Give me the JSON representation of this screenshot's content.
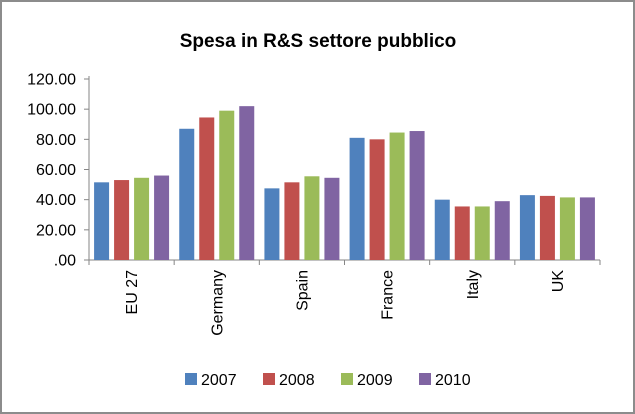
{
  "chart_data": {
    "type": "bar",
    "title": "Spesa in R&S settore pubblico",
    "xlabel": "",
    "ylabel": "",
    "categories": [
      "EU 27",
      "Germany",
      "Spain",
      "France",
      "Italy",
      "UK"
    ],
    "y_tick_labels": [
      ".00",
      "20.00",
      "40.00",
      "60.00",
      "80.00",
      "100.00",
      "120.00"
    ],
    "ylim": [
      0,
      120
    ],
    "grid": false,
    "legend_position": "bottom",
    "series": [
      {
        "name": "2007",
        "color": "#4f81bd",
        "values": [
          51.5,
          87.0,
          47.5,
          81.0,
          40.0,
          43.0
        ]
      },
      {
        "name": "2008",
        "color": "#c0504d",
        "values": [
          53.0,
          94.5,
          51.5,
          80.0,
          35.5,
          42.5
        ]
      },
      {
        "name": "2009",
        "color": "#9bbb59",
        "values": [
          54.5,
          99.0,
          55.5,
          84.5,
          35.5,
          41.5
        ]
      },
      {
        "name": "2010",
        "color": "#8064a2",
        "values": [
          56.0,
          102.0,
          54.5,
          85.5,
          39.0,
          41.5
        ]
      }
    ]
  }
}
